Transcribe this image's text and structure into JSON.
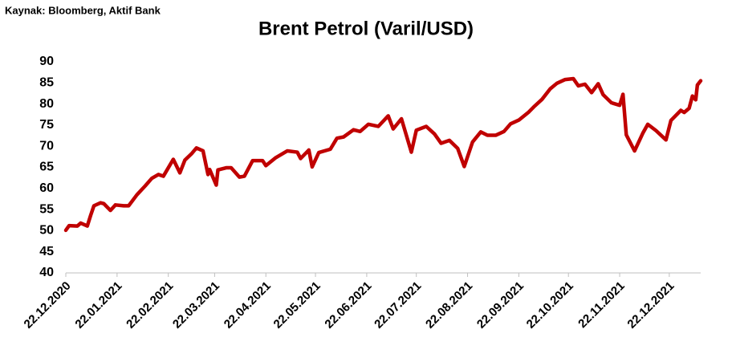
{
  "chart_data": {
    "type": "line",
    "title": "Brent Petrol (Varil/USD)",
    "source": "Kaynak: Bloomberg, Aktif Bank",
    "x": [
      "2020-12-22",
      "2020-12-24",
      "2020-12-29",
      "2020-12-31",
      "2021-01-04",
      "2021-01-06",
      "2021-01-08",
      "2021-01-12",
      "2021-01-14",
      "2021-01-18",
      "2021-01-21",
      "2021-01-26",
      "2021-01-29",
      "2021-02-03",
      "2021-02-08",
      "2021-02-12",
      "2021-02-16",
      "2021-02-19",
      "2021-02-25",
      "2021-03-01",
      "2021-03-04",
      "2021-03-08",
      "2021-03-11",
      "2021-03-15",
      "2021-03-18",
      "2021-03-19",
      "2021-03-23",
      "2021-03-24",
      "2021-03-29",
      "2021-04-01",
      "2021-04-06",
      "2021-04-09",
      "2021-04-14",
      "2021-04-20",
      "2021-04-22",
      "2021-04-28",
      "2021-05-05",
      "2021-05-11",
      "2021-05-13",
      "2021-05-18",
      "2021-05-20",
      "2021-05-24",
      "2021-05-31",
      "2021-06-04",
      "2021-06-08",
      "2021-06-14",
      "2021-06-18",
      "2021-06-23",
      "2021-06-29",
      "2021-07-05",
      "2021-07-08",
      "2021-07-13",
      "2021-07-19",
      "2021-07-22",
      "2021-07-28",
      "2021-08-02",
      "2021-08-06",
      "2021-08-11",
      "2021-08-16",
      "2021-08-20",
      "2021-08-25",
      "2021-08-30",
      "2021-09-03",
      "2021-09-08",
      "2021-09-13",
      "2021-09-17",
      "2021-09-22",
      "2021-09-28",
      "2021-10-01",
      "2021-10-06",
      "2021-10-11",
      "2021-10-15",
      "2021-10-20",
      "2021-10-25",
      "2021-10-28",
      "2021-11-01",
      "2021-11-05",
      "2021-11-09",
      "2021-11-12",
      "2021-11-17",
      "2021-11-22",
      "2021-11-24",
      "2021-11-26",
      "2021-12-01",
      "2021-12-06",
      "2021-12-09",
      "2021-12-14",
      "2021-12-20",
      "2021-12-23",
      "2021-12-29",
      "2021-12-31",
      "2022-01-03",
      "2022-01-05",
      "2022-01-07",
      "2022-01-08",
      "2022-01-10"
    ],
    "series": [
      {
        "name": "Brent",
        "color": "#c00000",
        "values": [
          50.1,
          51.2,
          51.1,
          51.8,
          51.1,
          53.6,
          55.9,
          56.6,
          56.4,
          54.8,
          56.1,
          55.9,
          55.9,
          58.5,
          60.6,
          62.4,
          63.3,
          62.9,
          66.9,
          63.7,
          66.7,
          68.2,
          69.6,
          68.9,
          63.3,
          64.5,
          60.8,
          64.4,
          64.9,
          64.9,
          62.7,
          62.9,
          66.6,
          66.6,
          65.4,
          67.3,
          68.9,
          68.6,
          67.1,
          69.1,
          65.1,
          68.5,
          69.3,
          71.9,
          72.2,
          73.9,
          73.5,
          75.2,
          74.7,
          77.2,
          74.1,
          76.5,
          68.6,
          73.8,
          74.7,
          72.9,
          70.7,
          71.4,
          69.5,
          65.2,
          71.0,
          73.4,
          72.6,
          72.6,
          73.5,
          75.3,
          76.2,
          78.1,
          79.3,
          81.1,
          83.6,
          84.9,
          85.8,
          86.0,
          84.3,
          84.7,
          82.7,
          84.8,
          82.2,
          80.3,
          79.7,
          82.3,
          72.7,
          68.9,
          73.1,
          75.2,
          73.7,
          71.5,
          76.1,
          78.5,
          78.0,
          79.0,
          81.9,
          81.0,
          84.5,
          85.5
        ]
      }
    ],
    "xlim": [
      "2020-12-22",
      "2022-01-10"
    ],
    "xticks": [
      {
        "value": "2020-12-22",
        "label": "22.12.2020"
      },
      {
        "value": "2021-01-22",
        "label": "22.01.2021"
      },
      {
        "value": "2021-02-22",
        "label": "22.02.2021"
      },
      {
        "value": "2021-03-22",
        "label": "22.03.2021"
      },
      {
        "value": "2021-04-22",
        "label": "22.04.2021"
      },
      {
        "value": "2021-05-22",
        "label": "22.05.2021"
      },
      {
        "value": "2021-06-22",
        "label": "22.06.2021"
      },
      {
        "value": "2021-07-22",
        "label": "22.07.2021"
      },
      {
        "value": "2021-08-22",
        "label": "22.08.2021"
      },
      {
        "value": "2021-09-22",
        "label": "22.09.2021"
      },
      {
        "value": "2021-10-22",
        "label": "22.10.2021"
      },
      {
        "value": "2021-11-22",
        "label": "22.11.2021"
      },
      {
        "value": "2021-12-22",
        "label": "22.12.2021"
      }
    ],
    "ylim": [
      40,
      90
    ],
    "yticks": [
      40,
      45,
      50,
      55,
      60,
      65,
      70,
      75,
      80,
      85,
      90
    ],
    "grid": false
  }
}
